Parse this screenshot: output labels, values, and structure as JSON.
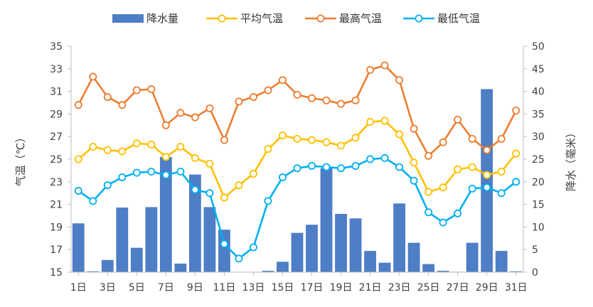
{
  "chart_data": {
    "type": "bar+line",
    "title": "",
    "categories": [
      "1日",
      "2日",
      "3日",
      "4日",
      "5日",
      "6日",
      "7日",
      "8日",
      "9日",
      "10日",
      "11日",
      "12日",
      "13日",
      "14日",
      "15日",
      "16日",
      "17日",
      "18日",
      "19日",
      "20日",
      "21日",
      "22日",
      "23日",
      "24日",
      "25日",
      "26日",
      "27日",
      "28日",
      "29日",
      "30日",
      "31日"
    ],
    "x_tick_labels": [
      "1日",
      "3日",
      "5日",
      "7日",
      "9日",
      "11日",
      "13日",
      "15日",
      "17日",
      "19日",
      "21日",
      "23日",
      "25日",
      "27日",
      "29日",
      "31日"
    ],
    "ylabel_left": "气温（℃）",
    "ylabel_right": "降水（毫米）",
    "ylim_left": [
      15,
      35
    ],
    "yticks_left": [
      "35",
      "33",
      "31",
      "29",
      "27",
      "25",
      "23",
      "21",
      "19",
      "17",
      "15"
    ],
    "ylim_right": [
      0,
      50
    ],
    "yticks_right": [
      "50",
      "45",
      "40",
      "35",
      "30",
      "25",
      "20",
      "15",
      "10",
      "5",
      "0"
    ],
    "grid": false,
    "legend_position": "top",
    "series": [
      {
        "name": "降水量",
        "kind": "bar",
        "axis": "right",
        "color": "#4e7ec5",
        "values": [
          10.8,
          0.2,
          2.7,
          14.3,
          5.4,
          14.4,
          25.5,
          1.9,
          21.6,
          14.4,
          9.4,
          0,
          0,
          0.3,
          2.3,
          8.7,
          10.5,
          23,
          12.9,
          11.9,
          4.7,
          2.1,
          15.2,
          6.5,
          1.8,
          0.3,
          0.1,
          6.5,
          40.5,
          4.7,
          0.2
        ]
      },
      {
        "name": "平均气温",
        "kind": "line",
        "axis": "left",
        "color": "#ffc000",
        "values": [
          25.0,
          26.1,
          25.8,
          25.7,
          26.4,
          26.3,
          25.2,
          26.1,
          25.1,
          24.6,
          21.6,
          22.7,
          23.7,
          25.9,
          27.1,
          26.8,
          26.7,
          26.5,
          26.2,
          26.9,
          28.3,
          28.4,
          27.2,
          24.7,
          22.1,
          22.5,
          24.1,
          24.3,
          23.6,
          23.9,
          25.5
        ]
      },
      {
        "name": "最高气温",
        "kind": "line",
        "axis": "left",
        "color": "#ed7d31",
        "values": [
          29.8,
          32.3,
          30.5,
          29.8,
          31.1,
          31.2,
          28.0,
          29.1,
          28.7,
          29.5,
          26.7,
          30.1,
          30.5,
          31.1,
          32.0,
          30.7,
          30.4,
          30.2,
          29.9,
          30.2,
          32.9,
          33.3,
          32.0,
          27.7,
          25.3,
          26.5,
          28.5,
          26.8,
          25.8,
          26.8,
          29.3
        ]
      },
      {
        "name": "最低气温",
        "kind": "line",
        "axis": "left",
        "color": "#00b0f0",
        "values": [
          22.2,
          21.3,
          22.7,
          23.4,
          23.8,
          23.9,
          23.6,
          23.9,
          22.3,
          22.0,
          17.5,
          16.2,
          17.2,
          21.3,
          23.4,
          24.2,
          24.4,
          24.3,
          24.2,
          24.4,
          25.0,
          25.1,
          24.3,
          23.1,
          20.3,
          19.4,
          20.2,
          22.4,
          22.5,
          22.0,
          23.0
        ]
      }
    ]
  }
}
